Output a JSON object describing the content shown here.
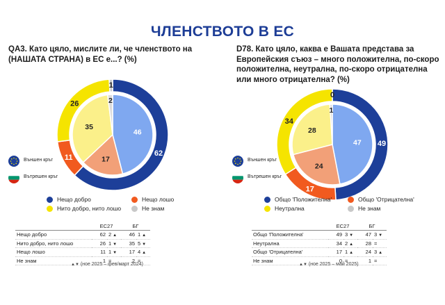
{
  "page_title": "ЧЛЕНСТВОТО В ЕС",
  "outer_ring_label": "Външен кръг",
  "inner_ring_label": "Вътрешен кръг",
  "colors": {
    "blue": "#1d3f99",
    "orange": "#f15a1f",
    "yellow": "#f5e400",
    "grey": "#c8c8c8",
    "lightblue": "#7fa8f0",
    "salmon": "#f2a078",
    "lightyellow": "#fbf08a",
    "lightgrey": "#dcdcdc"
  },
  "chart_data": [
    {
      "type": "pie",
      "question": "QA3. Като цяло, мислите ли, че членството на (НАШАТА СТРАНА) в ЕС е...? (%)",
      "categories": [
        "Нещо добро",
        "Нещо лошо",
        "Нито добро, нито лошо",
        "Не знам"
      ],
      "legend_order": [
        "Нещо добро",
        "Нещо лошо",
        "Нито добро, нито лошо",
        "Не знам"
      ],
      "series": [
        {
          "ring": "outer",
          "values": [
            62,
            11,
            26,
            1
          ]
        },
        {
          "ring": "inner",
          "values": [
            46,
            17,
            35,
            2
          ]
        }
      ],
      "table": {
        "headers": [
          "ЕС27",
          "БГ"
        ],
        "rows": [
          {
            "label": "Нещо добро",
            "eu": "62",
            "eu_change": "2",
            "eu_arrow": "▲",
            "bg": "46",
            "bg_change": "1",
            "bg_arrow": "▲"
          },
          {
            "label": "Нито добро, нито лошо",
            "eu": "26",
            "eu_change": "1",
            "eu_arrow": "▼",
            "bg": "35",
            "bg_change": "5",
            "bg_arrow": "▼"
          },
          {
            "label": "Нещо лошо",
            "eu": "11",
            "eu_change": "1",
            "eu_arrow": "▼",
            "bg": "17",
            "bg_change": "4",
            "bg_arrow": "▲"
          },
          {
            "label": "Не знам",
            "eu": "1",
            "eu_change": "=",
            "eu_arrow": "",
            "bg": "2",
            "bg_change": "=",
            "bg_arrow": ""
          }
        ]
      },
      "footnote": "(ное 2025 – фев/март 2024)",
      "footnote_arrows": "▲▼"
    },
    {
      "type": "pie",
      "question": "D78. Като цяло, каква е Вашата представа за Европейския съюз – много положителна, по-скоро положителна, неутрална, по-скоро отрицателна или много отрицателна? (%)",
      "categories": [
        "Общо 'Положителна'",
        "Общо 'Отрицателна'",
        "Неутрална",
        "Не знам"
      ],
      "legend_order": [
        "Общо 'Положителна'",
        "Общо 'Отрицателна'",
        "Неутрална",
        "Не знам"
      ],
      "series": [
        {
          "ring": "outer",
          "values": [
            49,
            17,
            34,
            0
          ]
        },
        {
          "ring": "inner",
          "values": [
            47,
            24,
            28,
            1
          ]
        }
      ],
      "table": {
        "headers": [
          "ЕС27",
          "БГ"
        ],
        "rows": [
          {
            "label": "Общо 'Положителна'",
            "eu": "49",
            "eu_change": "3",
            "eu_arrow": "▼",
            "bg": "47",
            "bg_change": "3",
            "bg_arrow": "▼"
          },
          {
            "label": "Неутрална",
            "eu": "34",
            "eu_change": "2",
            "eu_arrow": "▲",
            "bg": "28",
            "bg_change": "=",
            "bg_arrow": ""
          },
          {
            "label": "Общо 'Отрицателна'",
            "eu": "17",
            "eu_change": "1",
            "eu_arrow": "▲",
            "bg": "24",
            "bg_change": "3",
            "bg_arrow": "▲"
          },
          {
            "label": "Не знам",
            "eu": "0",
            "eu_change": "=",
            "eu_arrow": "",
            "bg": "1",
            "bg_change": "=",
            "bg_arrow": ""
          }
        ]
      },
      "footnote": "(ное 2025 – май 2025)",
      "footnote_arrows": "▲▼"
    }
  ]
}
